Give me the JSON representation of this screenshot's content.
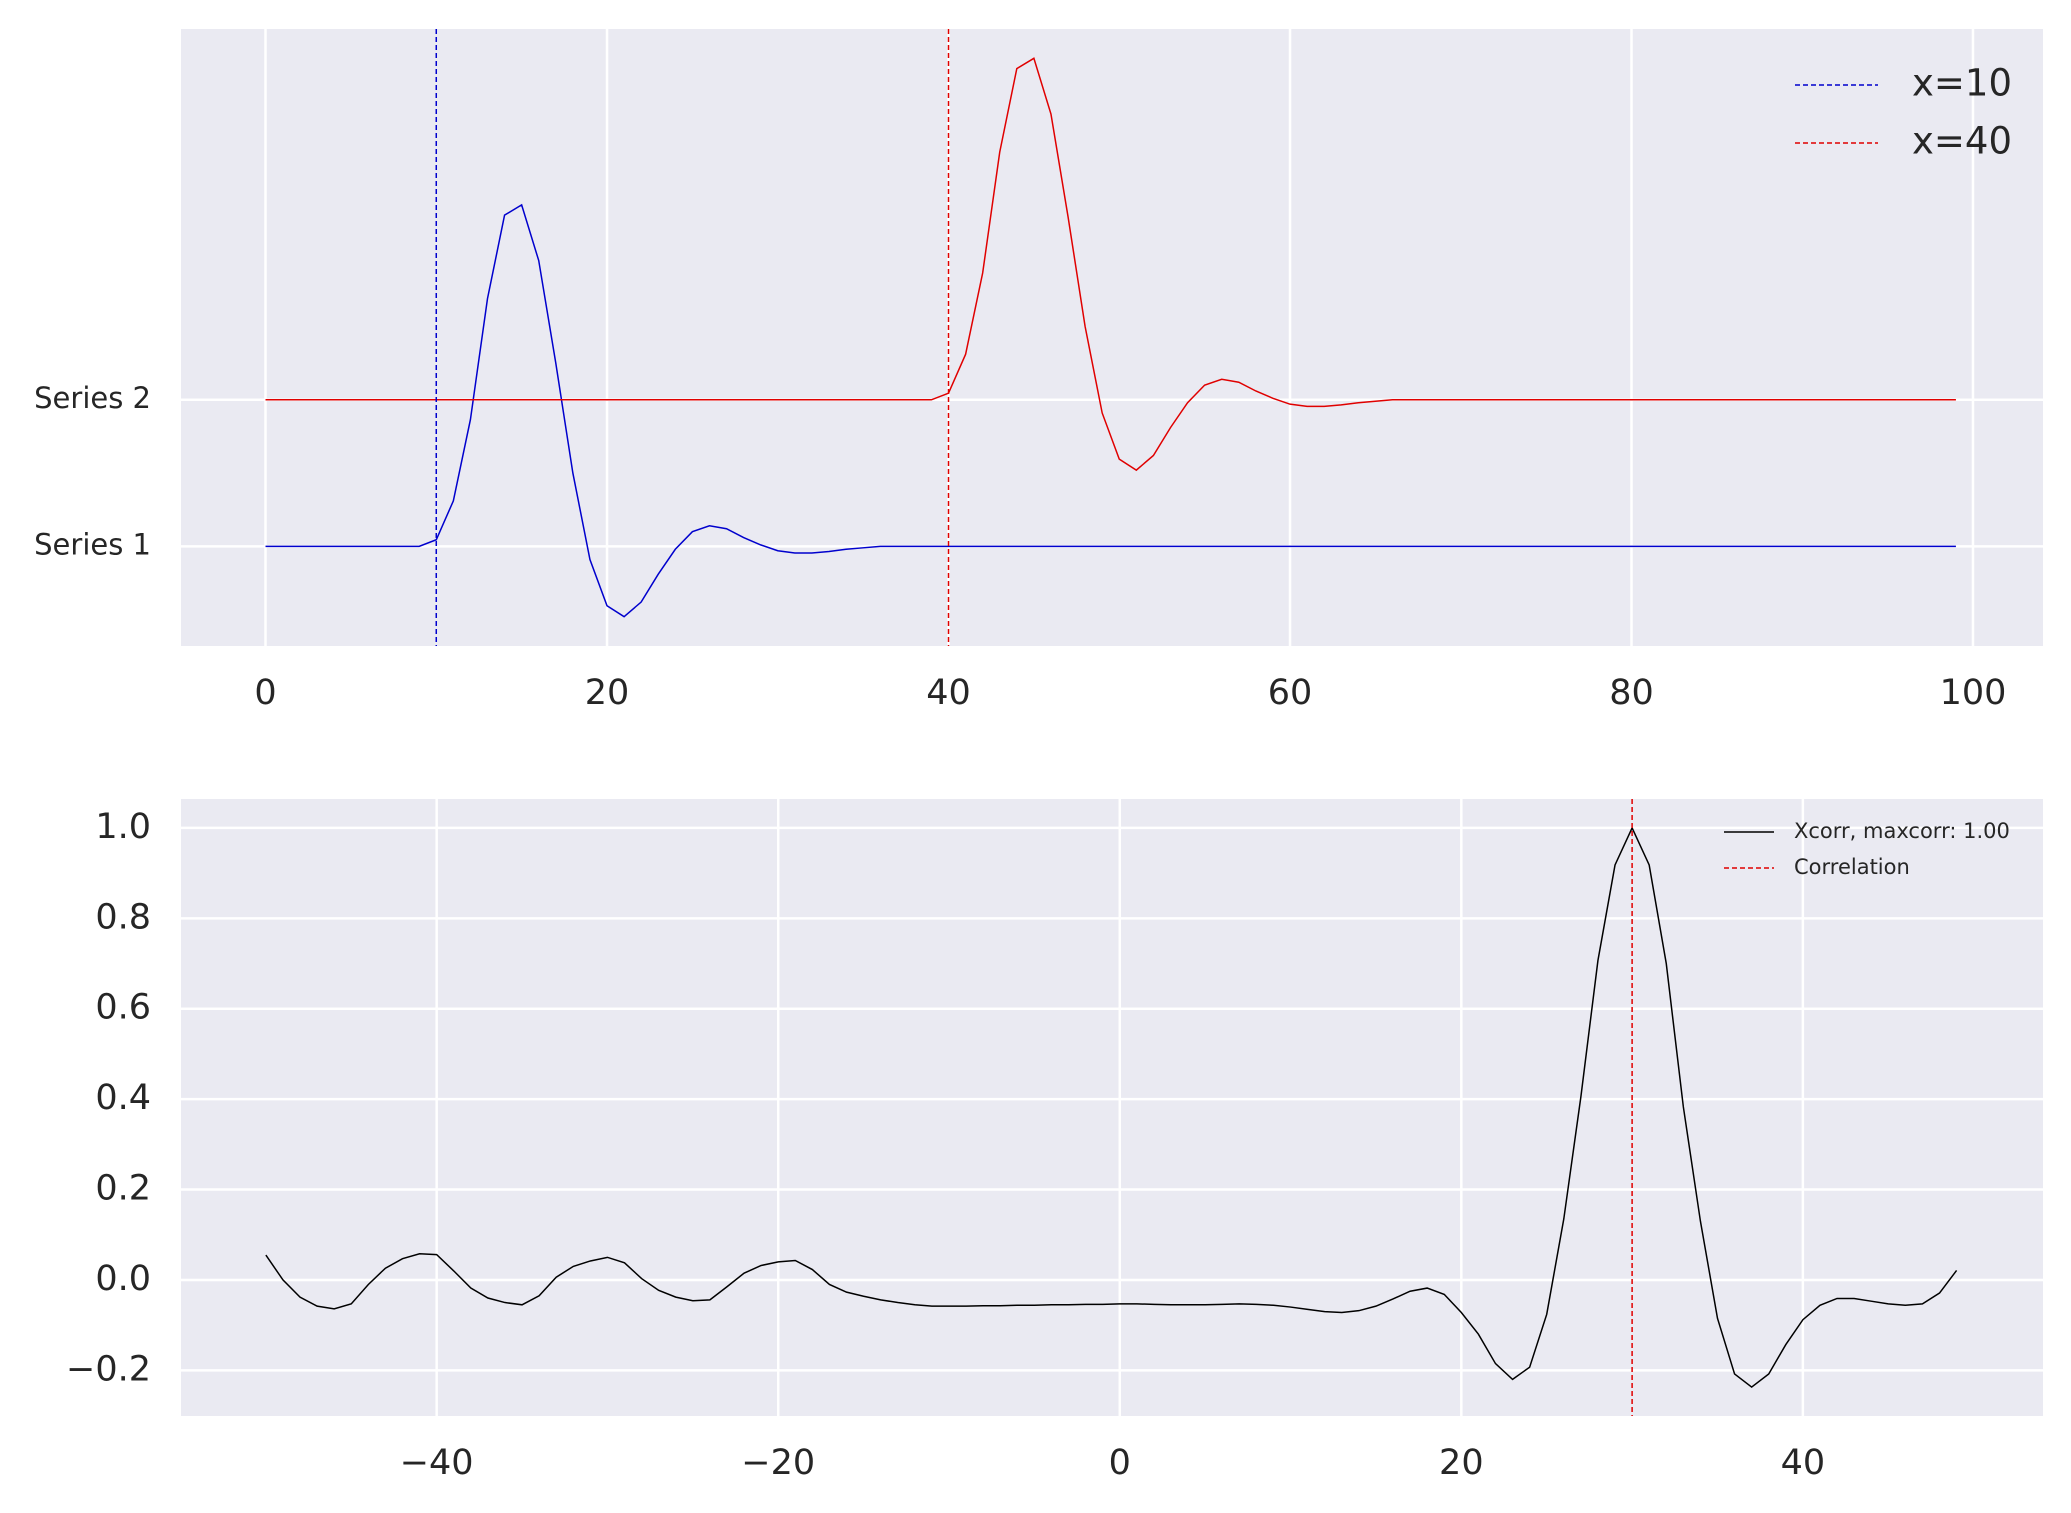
{
  "chart_data": [
    {
      "type": "line",
      "x": [
        0,
        1,
        2,
        3,
        4,
        5,
        6,
        7,
        8,
        9,
        10,
        11,
        12,
        13,
        14,
        15,
        16,
        17,
        18,
        19,
        20,
        21,
        22,
        23,
        24,
        25,
        26,
        27,
        28,
        29,
        30,
        31,
        32,
        33,
        34,
        35,
        36,
        37,
        38,
        39,
        40,
        41,
        42,
        43,
        44,
        45,
        46,
        47,
        48,
        49,
        50,
        51,
        52,
        53,
        54,
        55,
        56,
        57,
        58,
        59,
        60,
        61,
        62,
        63,
        64,
        65,
        66,
        67,
        68,
        69,
        70,
        71,
        72,
        73,
        74,
        75,
        76,
        77,
        78,
        79,
        80,
        81,
        82,
        83,
        84,
        85,
        86,
        87,
        88,
        89,
        90,
        91,
        92,
        93,
        94,
        95,
        96,
        97,
        98,
        99
      ],
      "series": [
        {
          "color": "#0000cd",
          "values": [
            1,
            1,
            1,
            1,
            1,
            1,
            1,
            1,
            1,
            1,
            1.045,
            1.31,
            1.865,
            2.69,
            3.26,
            3.33,
            2.95,
            2.25,
            1.5,
            0.91,
            0.595,
            0.52,
            0.62,
            0.81,
            0.98,
            1.1,
            1.14,
            1.12,
            1.06,
            1.01,
            0.97,
            0.955,
            0.955,
            0.965,
            0.98,
            0.99,
            1,
            1,
            1,
            1,
            1,
            1,
            1,
            1,
            1,
            1,
            1,
            1,
            1,
            1,
            1,
            1,
            1,
            1,
            1,
            1,
            1,
            1,
            1,
            1,
            1,
            1,
            1,
            1,
            1,
            1,
            1,
            1,
            1,
            1,
            1,
            1,
            1,
            1,
            1,
            1,
            1,
            1,
            1,
            1,
            1,
            1,
            1,
            1,
            1,
            1,
            1,
            1,
            1,
            1,
            1,
            1,
            1,
            1,
            1,
            1,
            1,
            1,
            1,
            1
          ]
        },
        {
          "color": "#e00000",
          "values": [
            2,
            2,
            2,
            2,
            2,
            2,
            2,
            2,
            2,
            2,
            2,
            2,
            2,
            2,
            2,
            2,
            2,
            2,
            2,
            2,
            2,
            2,
            2,
            2,
            2,
            2,
            2,
            2,
            2,
            2,
            2,
            2,
            2,
            2,
            2,
            2,
            2,
            2,
            2,
            2,
            2.045,
            2.31,
            2.865,
            3.69,
            4.26,
            4.33,
            3.95,
            3.25,
            2.5,
            1.91,
            1.595,
            1.52,
            1.62,
            1.81,
            1.98,
            2.1,
            2.14,
            2.12,
            2.06,
            2.01,
            1.97,
            1.955,
            1.955,
            1.965,
            1.98,
            1.99,
            2,
            2,
            2,
            2,
            2,
            2,
            2,
            2,
            2,
            2,
            2,
            2,
            2,
            2,
            2,
            2,
            2,
            2,
            2,
            2,
            2,
            2,
            2,
            2,
            2,
            2,
            2,
            2,
            2,
            2,
            2,
            2,
            2,
            2
          ]
        }
      ],
      "vlines": [
        {
          "x": 10,
          "label": "x=10",
          "color": "#0000cd"
        },
        {
          "x": 40,
          "label": "x=40",
          "color": "#e00000"
        }
      ],
      "xlim": [
        -4.95,
        104.1
      ],
      "xticks": [
        0,
        20,
        40,
        60,
        80,
        100
      ],
      "ylim": [
        0.32,
        4.53
      ],
      "yticks": [
        {
          "value": 1,
          "label": "Series 1"
        },
        {
          "value": 2,
          "label": "Series 2"
        }
      ],
      "grid": true,
      "legend": "upper right"
    },
    {
      "type": "line",
      "x": [
        -50,
        -49,
        -48,
        -47,
        -46,
        -45,
        -44,
        -43,
        -42,
        -41,
        -40,
        -39,
        -38,
        -37,
        -36,
        -35,
        -34,
        -33,
        -32,
        -31,
        -30,
        -29,
        -28,
        -27,
        -26,
        -25,
        -24,
        -23,
        -22,
        -21,
        -20,
        -19,
        -18,
        -17,
        -16,
        -15,
        -14,
        -13,
        -12,
        -11,
        -10,
        -9,
        -8,
        -7,
        -6,
        -5,
        -4,
        -3,
        -2,
        -1,
        0,
        1,
        2,
        3,
        4,
        5,
        6,
        7,
        8,
        9,
        10,
        11,
        12,
        13,
        14,
        15,
        16,
        17,
        18,
        19,
        20,
        21,
        22,
        23,
        24,
        25,
        26,
        27,
        28,
        29,
        30,
        31,
        32,
        33,
        34,
        35,
        36,
        37,
        38,
        39,
        40,
        41,
        42,
        43,
        44,
        45,
        46,
        47,
        48,
        49
      ],
      "series": [
        {
          "name": "Xcorr, maxcorr: 1.00",
          "color": "#000000",
          "values": [
            0.055,
            0,
            -0.038,
            -0.058,
            -0.064,
            -0.053,
            -0.01,
            0.026,
            0.047,
            0.058,
            0.056,
            0.02,
            -0.018,
            -0.04,
            -0.05,
            -0.055,
            -0.035,
            0.006,
            0.03,
            0.042,
            0.05,
            0.038,
            0.003,
            -0.023,
            -0.038,
            -0.046,
            -0.044,
            -0.015,
            0.015,
            0.032,
            0.04,
            0.043,
            0.023,
            -0.01,
            -0.027,
            -0.036,
            -0.044,
            -0.05,
            -0.055,
            -0.058,
            -0.058,
            -0.058,
            -0.057,
            -0.057,
            -0.056,
            -0.056,
            -0.055,
            -0.055,
            -0.054,
            -0.054,
            -0.053,
            -0.053,
            -0.054,
            -0.055,
            -0.055,
            -0.055,
            -0.054,
            -0.053,
            -0.054,
            -0.056,
            -0.06,
            -0.065,
            -0.07,
            -0.072,
            -0.068,
            -0.058,
            -0.042,
            -0.025,
            -0.018,
            -0.032,
            -0.072,
            -0.12,
            -0.185,
            -0.22,
            -0.193,
            -0.076,
            0.135,
            0.405,
            0.707,
            0.918,
            1,
            0.918,
            0.7,
            0.383,
            0.13,
            -0.085,
            -0.208,
            -0.237,
            -0.208,
            -0.143,
            -0.088,
            -0.056,
            -0.041,
            -0.041,
            -0.047,
            -0.053,
            -0.056,
            -0.053,
            -0.029,
            0.021
          ]
        }
      ],
      "vlines": [
        {
          "x": 30,
          "label": "Correlation",
          "color": "#e00000"
        }
      ],
      "xlim": [
        -54.97,
        54.06
      ],
      "xticks": [
        {
          "value": -40,
          "label": "−40"
        },
        {
          "value": -20,
          "label": "−20"
        },
        0,
        20,
        40
      ],
      "ylim": [
        -0.301,
        1.064
      ],
      "yticks": [
        {
          "value": -0.2,
          "label": "−0.2"
        },
        {
          "value": 0,
          "label": "0.0"
        },
        {
          "value": 0.2,
          "label": "0.2"
        },
        {
          "value": 0.4,
          "label": "0.4"
        },
        {
          "value": 0.6,
          "label": "0.6"
        },
        {
          "value": 0.8,
          "label": "0.8"
        },
        {
          "value": 1,
          "label": "1.0"
        }
      ],
      "grid": true,
      "legend": "upper right"
    }
  ]
}
